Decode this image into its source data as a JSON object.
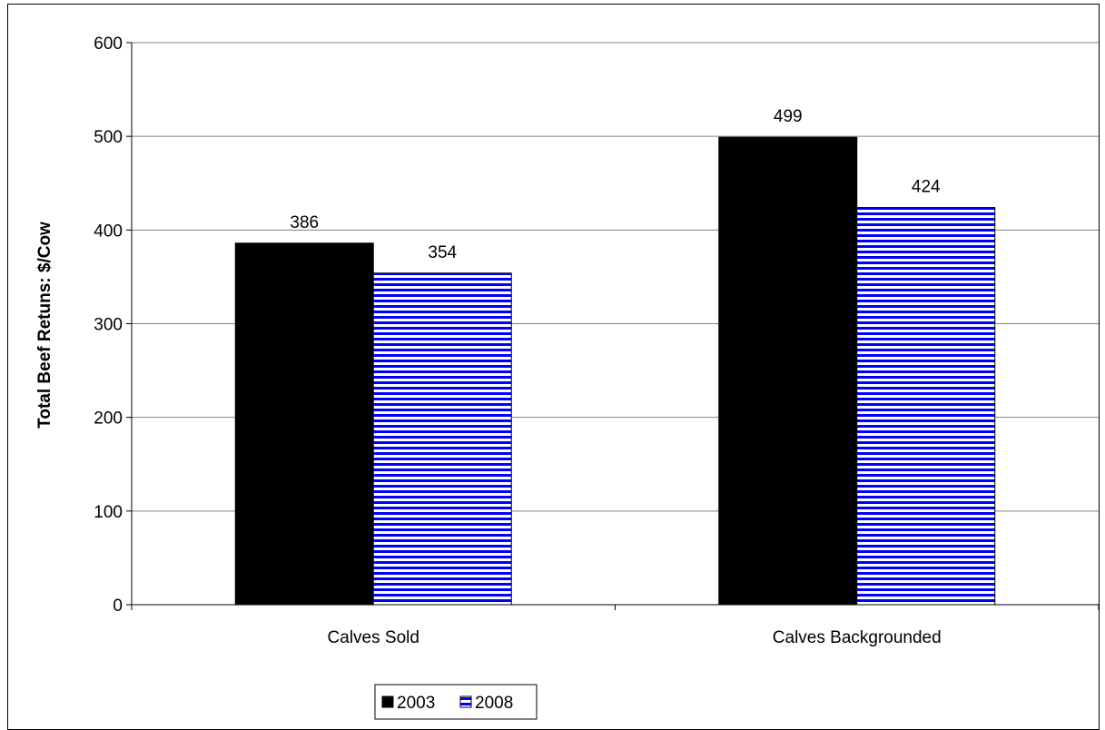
{
  "chart_data": {
    "type": "bar",
    "title": "",
    "xlabel": "",
    "ylabel": "Total Beef Retuns: $/Cow",
    "categories": [
      "Calves Sold",
      "Calves Backgrounded"
    ],
    "series": [
      {
        "name": "2003",
        "values": [
          386,
          499
        ],
        "color": "#000000",
        "pattern": "solid"
      },
      {
        "name": "2008",
        "values": [
          354,
          424
        ],
        "color": "#0000ff",
        "pattern": "horizontal-stripes"
      }
    ],
    "ylim": [
      0,
      600
    ],
    "yticks": [
      "0",
      "100",
      "200",
      "300",
      "400",
      "500",
      "600"
    ],
    "data_labels": true,
    "grid": true,
    "legend_position": "bottom"
  }
}
